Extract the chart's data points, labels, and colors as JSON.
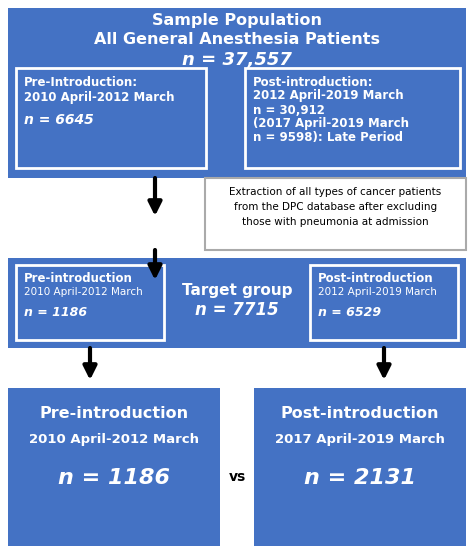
{
  "bg_color": "#ffffff",
  "blue": "#4472C4",
  "white": "#ffffff",
  "black": "#000000",
  "gray_edge": "#999999",
  "top_box": {
    "line1": "Sample Population",
    "line2": "All General Anesthesia Patients",
    "line3": "n = 37,557"
  },
  "pre_intro_box": {
    "line1": "Pre-Introduction:",
    "line2": "2010 April-2012 March",
    "line3": "n = 6645"
  },
  "post_intro_box": {
    "line1": "Post-introduction:",
    "line2": "2012 April-2019 March",
    "line3": "n = 30,912",
    "line4": "(2017 April-2019 March",
    "line5": "n = 9598): Late Period"
  },
  "extraction_box": {
    "line1": "Extraction of all types of cancer patients",
    "line2": "from the DPC database after excluding",
    "line3": "those with pneumonia at admission"
  },
  "middle_row": {
    "left_line1": "Pre-introduction",
    "left_line2": "2010 April-2012 March",
    "left_line3": "n = 1186",
    "center_line1": "Target group",
    "center_line2": "n = 7715",
    "right_line1": "Post-introduction",
    "right_line2": "2012 April-2019 March",
    "right_line3": "n = 6529"
  },
  "bottom_left": {
    "line1": "Pre-introduction",
    "line2": "2010 April-2012 March",
    "line3": "n = 1186"
  },
  "bottom_right": {
    "line1": "Post-introduction",
    "line2": "2017 April-2019 March",
    "line3": "n = 2131"
  },
  "vs_text": "vs"
}
